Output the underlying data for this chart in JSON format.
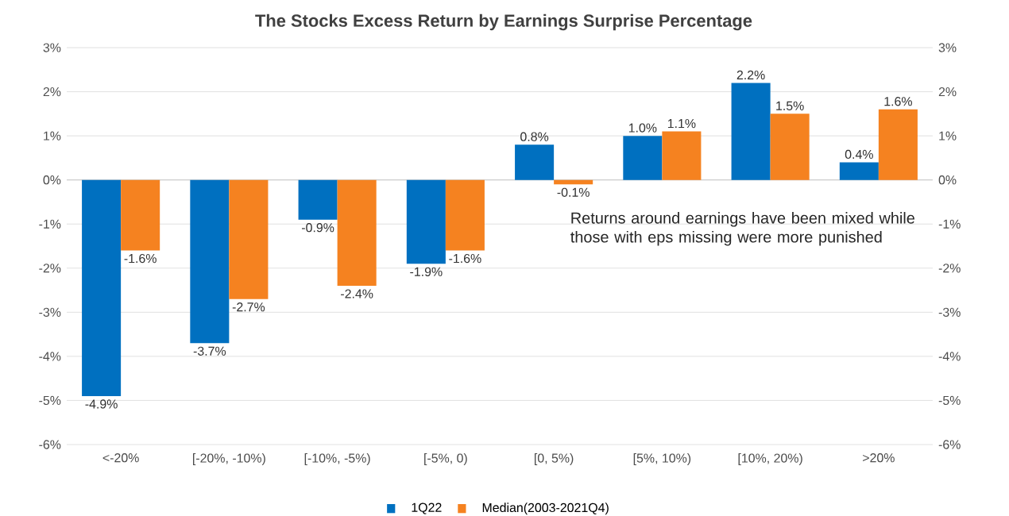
{
  "chart_data": {
    "type": "bar",
    "title": "The Stocks Excess Return by Earnings Surprise Percentage",
    "categories": [
      "<-20%",
      "[-20%, -10%)",
      "[-10%, -5%)",
      "[-5%, 0)",
      "[0, 5%)",
      "[5%, 10%)",
      "[10%, 20%)",
      ">20%"
    ],
    "series": [
      {
        "name": "1Q22",
        "color": "#0070c0",
        "values": [
          -4.9,
          -3.7,
          -0.9,
          -1.9,
          0.8,
          1.0,
          2.2,
          0.4
        ],
        "value_labels": [
          "-4.9%",
          "-3.7%",
          "-0.9%",
          "-1.9%",
          "0.8%",
          "1.0%",
          "2.2%",
          "0.4%"
        ]
      },
      {
        "name": "Median(2003-2021Q4)",
        "color": "#f58220",
        "values": [
          -1.6,
          -2.7,
          -2.4,
          -1.6,
          -0.1,
          1.1,
          1.5,
          1.6
        ],
        "value_labels": [
          "-1.6%",
          "-2.7%",
          "-2.4%",
          "-1.6%",
          "-0.1%",
          "1.1%",
          "1.5%",
          "1.6%"
        ]
      }
    ],
    "ylim": [
      -6,
      3
    ],
    "yticks": [
      {
        "value": 3,
        "label": "3%"
      },
      {
        "value": 2,
        "label": "2%"
      },
      {
        "value": 1,
        "label": "1%"
      },
      {
        "value": 0,
        "label": "0%"
      },
      {
        "value": -1,
        "label": "-1%"
      },
      {
        "value": -2,
        "label": "-2%"
      },
      {
        "value": -3,
        "label": "-3%"
      },
      {
        "value": -4,
        "label": "-4%"
      },
      {
        "value": -5,
        "label": "-5%"
      },
      {
        "value": -6,
        "label": "-6%"
      }
    ],
    "y2lim": [
      -6,
      3
    ],
    "y2ticks": [
      {
        "value": 3,
        "label": "3%"
      },
      {
        "value": 2,
        "label": "2%"
      },
      {
        "value": 1,
        "label": "1%"
      },
      {
        "value": 0,
        "label": "0%"
      },
      {
        "value": -1,
        "label": "-1%"
      },
      {
        "value": -2,
        "label": "-2%"
      },
      {
        "value": -3,
        "label": "-3%"
      },
      {
        "value": -4,
        "label": "-4%"
      },
      {
        "value": -5,
        "label": "-5%"
      },
      {
        "value": -6,
        "label": "-6%"
      }
    ],
    "annotations": [
      "Returns around earnings have been mixed while those with eps missing were more punished"
    ],
    "grid": "y",
    "legend": "bottom"
  }
}
